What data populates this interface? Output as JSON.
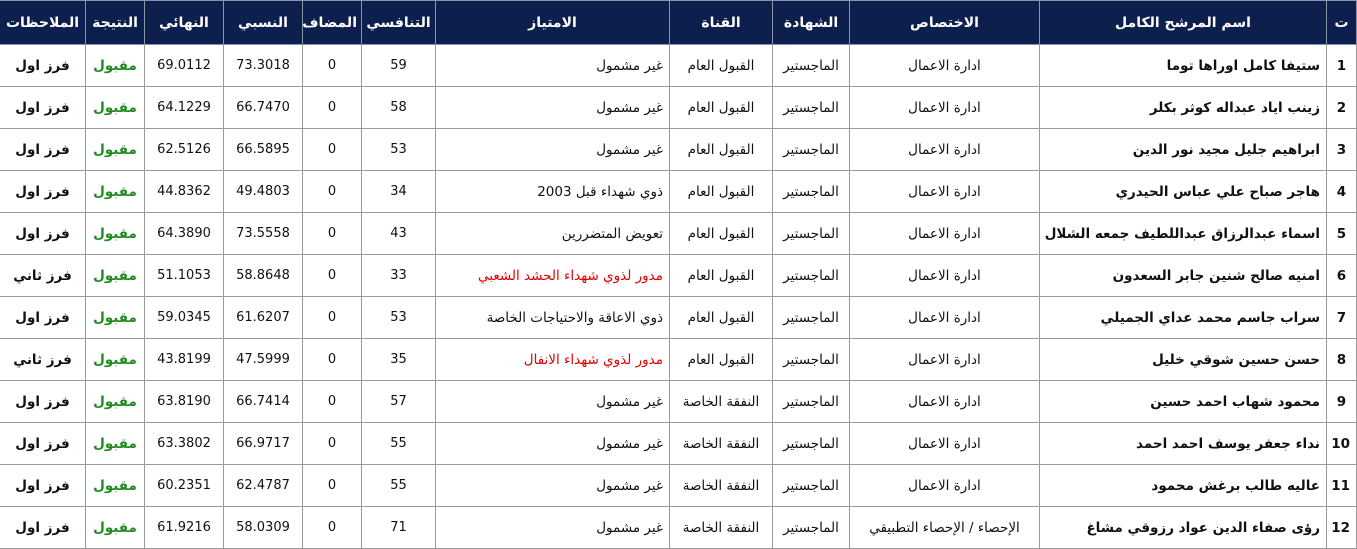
{
  "table": {
    "headers": [
      "ت",
      "اسم المرشح الكامل",
      "الاختصاص",
      "الشهادة",
      "القناة",
      "الامتياز",
      "التنافسي",
      "المضاف",
      "النسبي",
      "النهائي",
      "النتيجة",
      "الملاحظات"
    ],
    "rows": [
      [
        "1",
        "ستيفا كامل اوراها توما",
        "ادارة الاعمال",
        "الماجستير",
        "القبول العام",
        "غير مشمول",
        "59",
        "0",
        "73.3018",
        "69.0112",
        "مقبول",
        "فرز اول"
      ],
      [
        "2",
        "زينب اياد عبداله كوثر بكلر",
        "ادارة الاعمال",
        "الماجستير",
        "القبول العام",
        "غير مشمول",
        "58",
        "0",
        "66.7470",
        "64.1229",
        "مقبول",
        "فرز اول"
      ],
      [
        "3",
        "ابراهيم جليل مجيد نور الدين",
        "ادارة الاعمال",
        "الماجستير",
        "القبول العام",
        "غير مشمول",
        "53",
        "0",
        "66.5895",
        "62.5126",
        "مقبول",
        "فرز اول"
      ],
      [
        "4",
        "هاجر صباح علي عباس الحيدري",
        "ادارة الاعمال",
        "الماجستير",
        "القبول العام",
        "ذوي شهداء قبل 2003",
        "34",
        "0",
        "49.4803",
        "44.8362",
        "مقبول",
        "فرز اول"
      ],
      [
        "5",
        "اسماء عبدالرزاق عبداللطيف جمعه الشلال",
        "ادارة الاعمال",
        "الماجستير",
        "القبول العام",
        "تعويض المتضررين",
        "43",
        "0",
        "73.5558",
        "64.3890",
        "مقبول",
        "فرز اول"
      ],
      [
        "6",
        "امنيه صالح شنين جابر السعدون",
        "ادارة الاعمال",
        "الماجستير",
        "القبول العام",
        "مدور لذوي شهداء الحشد الشعبي",
        "33",
        "0",
        "58.8648",
        "51.1053",
        "مقبول",
        "فرز ثاني"
      ],
      [
        "7",
        "سراب جاسم محمد عداي الجميلي",
        "ادارة الاعمال",
        "الماجستير",
        "القبول العام",
        "ذوي الاعاقة والاحتياجات الخاصة",
        "53",
        "0",
        "61.6207",
        "59.0345",
        "مقبول",
        "فرز اول"
      ],
      [
        "8",
        "حسن حسين شوقي خليل",
        "ادارة الاعمال",
        "الماجستير",
        "القبول العام",
        "مدور لذوي شهداء الانفال",
        "35",
        "0",
        "47.5999",
        "43.8199",
        "مقبول",
        "فرز ثاني"
      ],
      [
        "9",
        "محمود شهاب احمد حسين",
        "ادارة الاعمال",
        "الماجستير",
        "النفقة الخاصة",
        "غير مشمول",
        "57",
        "0",
        "66.7414",
        "63.8190",
        "مقبول",
        "فرز اول"
      ],
      [
        "10",
        "نداء جعفر يوسف احمد احمد",
        "ادارة الاعمال",
        "الماجستير",
        "النفقة الخاصة",
        "غير مشمول",
        "55",
        "0",
        "66.9717",
        "63.3802",
        "مقبول",
        "فرز اول"
      ],
      [
        "11",
        "عاليه طالب برغش محمود",
        "ادارة الاعمال",
        "الماجستير",
        "النفقة الخاصة",
        "غير مشمول",
        "55",
        "0",
        "62.4787",
        "60.2351",
        "مقبول",
        "فرز اول"
      ],
      [
        "12",
        "رؤى صفاء الدين عواد رزوقي مشاغ",
        "الإحصاء / الإحصاء التطبيقي",
        "الماجستير",
        "النفقة الخاصة",
        "غير مشمول",
        "71",
        "0",
        "58.0309",
        "61.9216",
        "مقبول",
        "فرز اول"
      ]
    ]
  }
}
